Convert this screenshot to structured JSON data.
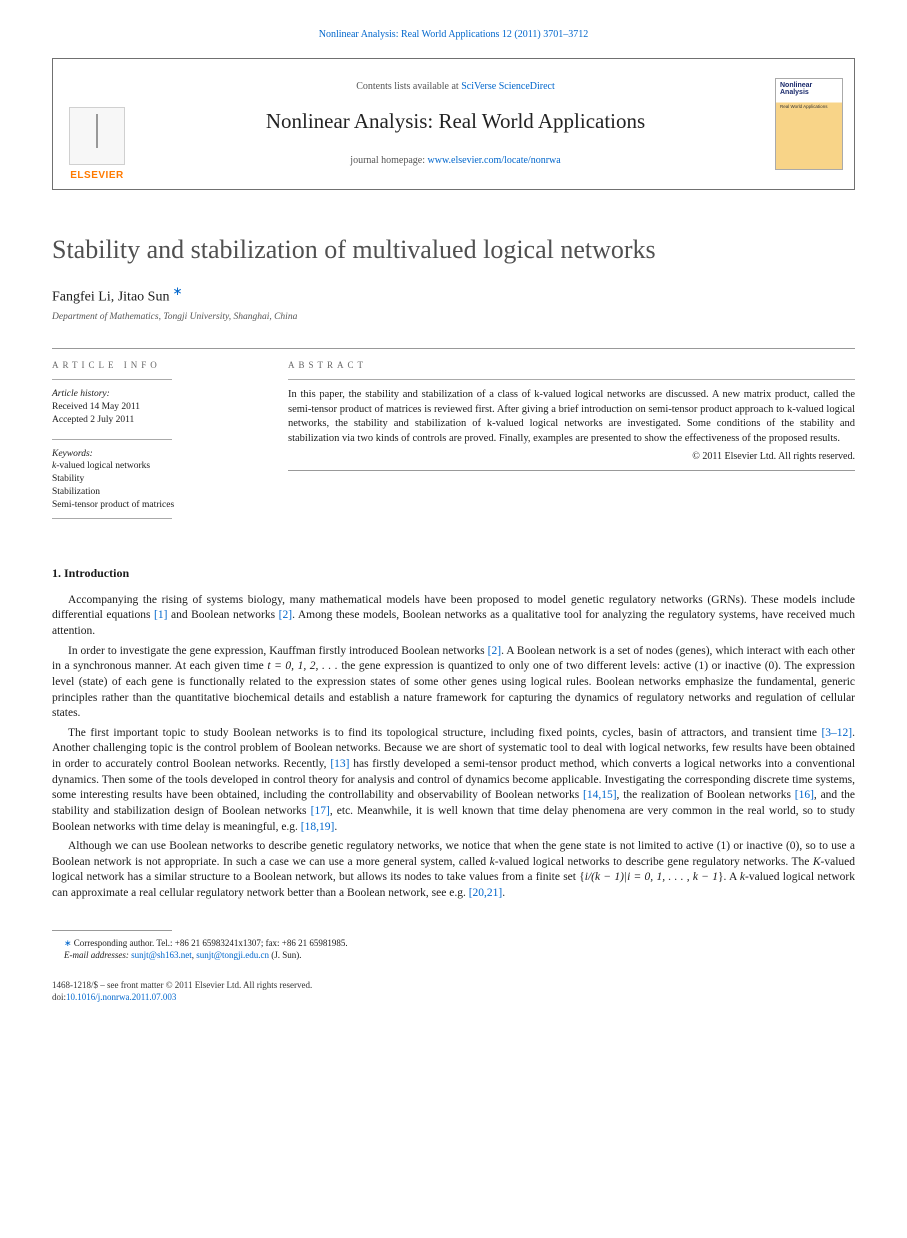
{
  "runningHead": {
    "journal": "Nonlinear Analysis: Real World Applications",
    "citation": "12 (2011) 3701–3712"
  },
  "headerBox": {
    "contentsPrefix": "Contents lists available at ",
    "contentsLink": "SciVerse ScienceDirect",
    "journalTitle": "Nonlinear Analysis: Real World Applications",
    "homepagePrefix": "journal homepage: ",
    "homepageLink": "www.elsevier.com/locate/nonrwa",
    "elsevierLabel": "ELSEVIER",
    "coverTitle": "Nonlinear Analysis",
    "coverSub": "Real World Applications"
  },
  "article": {
    "title": "Stability and stabilization of multivalued logical networks",
    "authors": [
      {
        "name": "Fangfei Li",
        "corr": false
      },
      {
        "name": "Jitao Sun",
        "corr": true
      }
    ],
    "authorSep": ", ",
    "affiliation": "Department of Mathematics, Tongji University, Shanghai, China"
  },
  "info": {
    "label": "article info",
    "historyHeading": "Article history:",
    "received": "Received 14 May 2011",
    "accepted": "Accepted 2 July 2011",
    "keywordsHeading": "Keywords:",
    "keywords": [
      "k-valued logical networks",
      "Stability",
      "Stabilization",
      "Semi-tensor product of matrices"
    ]
  },
  "abstract": {
    "label": "abstract",
    "text": "In this paper, the stability and stabilization of a class of k-valued logical networks are discussed. A new matrix product, called the semi-tensor product of matrices is reviewed first. After giving a brief introduction on semi-tensor product approach to k-valued logical networks, the stability and stabilization of k-valued logical networks are investigated. Some conditions of the stability and stabilization via two kinds of controls are proved. Finally, examples are presented to show the effectiveness of the proposed results.",
    "copyright": "© 2011 Elsevier Ltd. All rights reserved."
  },
  "section1": {
    "heading": "1. Introduction",
    "p1a": "Accompanying the rising of systems biology, many mathematical models have been proposed to model genetic regulatory networks (GRNs). These models include differential equations ",
    "p1r1": "[1]",
    "p1b": " and Boolean networks ",
    "p1r2": "[2]",
    "p1c": ". Among these models, Boolean networks as a qualitative tool for analyzing the regulatory systems, have received much attention.",
    "p2a": "In order to investigate the gene expression, Kauffman firstly introduced Boolean networks ",
    "p2r1": "[2]",
    "p2b": ". A Boolean network is a set of nodes (genes), which interact with each other in a synchronous manner. At each given time ",
    "p2_time": "t = 0, 1, 2, . . .",
    "p2c": " the gene expression is quantized to only one of two different levels: active (1) or inactive (0). The expression level (state) of each gene is functionally related to the expression states of some other genes using logical rules. Boolean networks emphasize the fundamental, generic principles rather than the quantitative biochemical details and establish a nature framework for capturing the dynamics of regulatory networks and regulation of cellular states.",
    "p3a": "The first important topic to study Boolean networks is to find its topological structure, including fixed points, cycles, basin of attractors, and transient time ",
    "p3r1": "[3–12]",
    "p3b": ". Another challenging topic is the control problem of Boolean networks. Because we are short of systematic tool to deal with logical networks, few results have been obtained in order to accurately control Boolean networks. Recently, ",
    "p3r2": "[13]",
    "p3c": " has firstly developed a semi-tensor product method, which converts a logical networks into a conventional dynamics. Then some of the tools developed in control theory for analysis and control of dynamics become applicable. Investigating the corresponding discrete time systems, some interesting results have been obtained, including the controllability and observability of Boolean networks ",
    "p3r3": "[14,15]",
    "p3d": ", the realization of Boolean networks ",
    "p3r4": "[16]",
    "p3e": ", and the stability and stabilization design of Boolean networks ",
    "p3r5": "[17]",
    "p3f": ", etc. Meanwhile, it is well known that time delay phenomena are very common in the real world, so to study Boolean networks with time delay is meaningful, e.g. ",
    "p3r6": "[18,19]",
    "p3g": ".",
    "p4a": "Although we can use Boolean networks to describe genetic regulatory networks, we notice that when the gene state is not limited to active (1) or inactive (0), so to use a Boolean network is not appropriate. In such a case we can use a more general system, called ",
    "p4_k1": "k",
    "p4b": "-valued logical networks to describe gene regulatory networks. The ",
    "p4_K": "K",
    "p4c": "-valued logical network has a similar structure to a Boolean network, but allows its nodes to take values from a finite set {",
    "p4_set": "i/(k − 1)|i = 0, 1, . . . , k − 1",
    "p4d": "}. A ",
    "p4_k2": "k",
    "p4e": "-valued logical network can approximate a real cellular regulatory network better than a Boolean network, see e.g. ",
    "p4r1": "[20,21]",
    "p4f": "."
  },
  "footnote": {
    "corrLabel": "Corresponding author. ",
    "tel": "Tel.: +86 21 65983241x1307; fax: +86 21 65981985.",
    "emailLabel": "E-mail addresses: ",
    "email1": "sunjt@sh163.net",
    "sep": ", ",
    "email2": "sunjt@tongji.edu.cn",
    "person": " (J. Sun)."
  },
  "footer": {
    "issn": "1468-1218/$ – see front matter © 2011 Elsevier Ltd. All rights reserved.",
    "doiLabel": "doi:",
    "doi": "10.1016/j.nonrwa.2011.07.003"
  }
}
